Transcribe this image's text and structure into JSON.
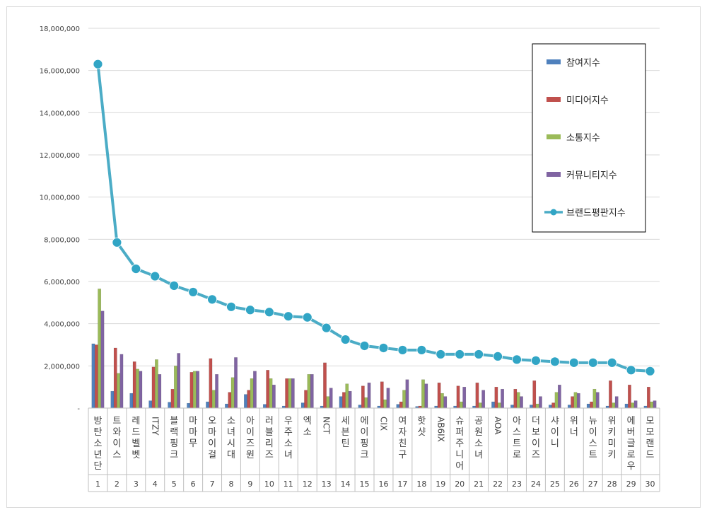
{
  "chart_data": {
    "type": "bar",
    "title": "",
    "xlabel": "",
    "ylabel": "",
    "ylim": [
      0,
      18000000
    ],
    "y_ticks": [
      "-",
      "2,000,000",
      "4,000,000",
      "6,000,000",
      "8,000,000",
      "10,000,000",
      "12,000,000",
      "14,000,000",
      "16,000,000",
      "18,000,000"
    ],
    "grid": "horizontal",
    "legend_position": "top-right",
    "categories": [
      "방탄소년단",
      "트와이스",
      "레드벨벳",
      "ITZY",
      "블랙핑크",
      "마마무",
      "오마이걸",
      "소녀시대",
      "아이즈원",
      "러블리즈",
      "우주소녀",
      "엑소",
      "NCT",
      "세븐틴",
      "에이핑크",
      "CIX",
      "여자친구",
      "핫샷",
      "AB6IX",
      "슈퍼주니어",
      "공원소녀",
      "AOA",
      "아스트로",
      "더보이즈",
      "샤이니",
      "위너",
      "뉴이스트",
      "위키미키",
      "에버글로우",
      "모모랜드"
    ],
    "ranks": [
      "1",
      "2",
      "3",
      "4",
      "5",
      "6",
      "7",
      "8",
      "9",
      "10",
      "11",
      "12",
      "13",
      "14",
      "15",
      "16",
      "17",
      "18",
      "19",
      "20",
      "21",
      "22",
      "23",
      "24",
      "25",
      "26",
      "27",
      "28",
      "29",
      "30"
    ],
    "series": [
      {
        "name": "참여지수",
        "type": "bar",
        "color": "#4f81bd",
        "values": [
          3050000,
          800000,
          700000,
          350000,
          280000,
          230000,
          300000,
          200000,
          650000,
          180000,
          100000,
          250000,
          100000,
          550000,
          150000,
          100000,
          180000,
          80000,
          100000,
          100000,
          100000,
          300000,
          150000,
          150000,
          150000,
          150000,
          200000,
          100000,
          200000,
          100000
        ]
      },
      {
        "name": "미디어지수",
        "type": "bar",
        "color": "#c0504d",
        "values": [
          3000000,
          2850000,
          2200000,
          1950000,
          900000,
          1700000,
          2350000,
          750000,
          850000,
          1800000,
          1400000,
          850000,
          2150000,
          750000,
          1050000,
          1250000,
          300000,
          100000,
          1200000,
          1050000,
          1200000,
          1000000,
          900000,
          1300000,
          250000,
          550000,
          300000,
          1300000,
          1100000,
          1000000
        ]
      },
      {
        "name": "소통지수",
        "type": "bar",
        "color": "#9bbb59",
        "values": [
          5650000,
          1650000,
          1850000,
          2300000,
          2000000,
          1750000,
          850000,
          1450000,
          1400000,
          1400000,
          1400000,
          1600000,
          550000,
          1150000,
          500000,
          400000,
          850000,
          1350000,
          700000,
          300000,
          250000,
          250000,
          750000,
          200000,
          750000,
          750000,
          900000,
          250000,
          250000,
          300000
        ]
      },
      {
        "name": "커뮤니티지수",
        "type": "bar",
        "color": "#8064a2",
        "values": [
          4600000,
          2550000,
          1750000,
          1600000,
          2600000,
          1750000,
          1600000,
          2400000,
          1750000,
          1100000,
          1400000,
          1600000,
          950000,
          800000,
          1200000,
          950000,
          1350000,
          1150000,
          550000,
          1000000,
          850000,
          900000,
          550000,
          550000,
          1100000,
          700000,
          750000,
          550000,
          350000,
          350000
        ]
      },
      {
        "name": "브랜드평판지수",
        "type": "line",
        "color": "#4bacc6",
        "values": [
          16300000,
          7850000,
          6600000,
          6250000,
          5800000,
          5500000,
          5150000,
          4800000,
          4650000,
          4550000,
          4350000,
          4300000,
          3800000,
          3250000,
          2950000,
          2850000,
          2750000,
          2750000,
          2550000,
          2550000,
          2550000,
          2450000,
          2300000,
          2250000,
          2200000,
          2150000,
          2150000,
          2150000,
          1800000,
          1750000
        ]
      }
    ]
  }
}
